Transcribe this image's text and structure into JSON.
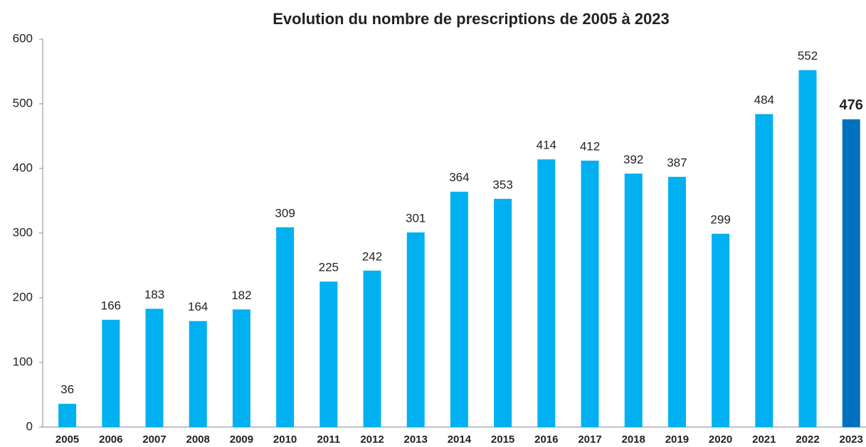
{
  "chart_data": {
    "type": "bar",
    "title": "Evolution du nombre de prescriptions de 2005 à 2023",
    "categories": [
      "2005",
      "2006",
      "2007",
      "2008",
      "2009",
      "2010",
      "2011",
      "2012",
      "2013",
      "2014",
      "2015",
      "2016",
      "2017",
      "2018",
      "2019",
      "2020",
      "2021",
      "2022",
      "2023"
    ],
    "values": [
      36,
      166,
      183,
      164,
      182,
      309,
      225,
      242,
      301,
      364,
      353,
      414,
      412,
      392,
      387,
      299,
      484,
      552,
      476
    ],
    "colors": [
      "#00b0f0",
      "#00b0f0",
      "#00b0f0",
      "#00b0f0",
      "#00b0f0",
      "#00b0f0",
      "#00b0f0",
      "#00b0f0",
      "#00b0f0",
      "#00b0f0",
      "#00b0f0",
      "#00b0f0",
      "#00b0f0",
      "#00b0f0",
      "#00b0f0",
      "#00b0f0",
      "#00b0f0",
      "#00b0f0",
      "#0070c0"
    ],
    "ylim": [
      0,
      600
    ],
    "yticks": [
      0,
      100,
      200,
      300,
      400,
      500,
      600
    ],
    "grid": false
  }
}
